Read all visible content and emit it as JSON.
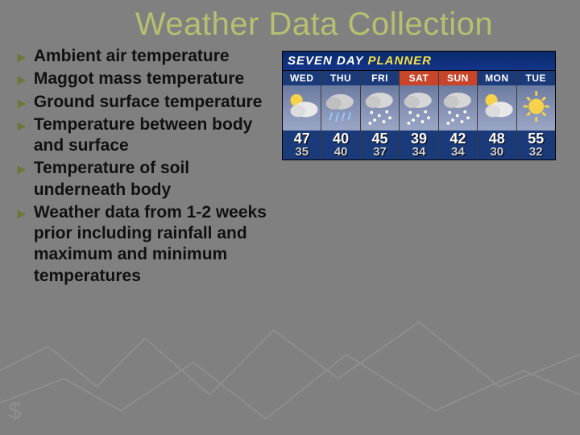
{
  "title": "Weather Data Collection",
  "title_color": "#b8bf6f",
  "background_color": "#808080",
  "bullet_arrow_color": "#6b7a3a",
  "bullet_text_color": "#111111",
  "bullet_fontsize_pt": 16,
  "bullets": [
    "Ambient air temperature",
    "Maggot mass temperature",
    "Ground surface temperature",
    "Temperature between body and surface",
    "Temperature of soil underneath body",
    "Weather data from 1-2 weeks prior including rainfall and maximum and minimum temperatures"
  ],
  "planner": {
    "header_prefix": "SEVEN DAY",
    "header_accent": "PLANNER",
    "header_bg": "#14348a",
    "header_text_color": "#ffffff",
    "header_accent_color": "#f5e24a",
    "weekday_bg": "#1a3a7a",
    "weekend_bg": "#c8452a",
    "icon_bg_top": "#6b7ba0",
    "icon_bg_bottom": "#9aa6c4",
    "temp_hi_color": "#ffffff",
    "temp_lo_color": "#d0d0d0",
    "days": [
      {
        "label": "WED",
        "icon": "partly-cloudy",
        "hi": 47,
        "lo": 35,
        "weekend": false
      },
      {
        "label": "THU",
        "icon": "rain",
        "hi": 40,
        "lo": 40,
        "weekend": false
      },
      {
        "label": "FRI",
        "icon": "snow",
        "hi": 45,
        "lo": 37,
        "weekend": false
      },
      {
        "label": "SAT",
        "icon": "snow",
        "hi": 39,
        "lo": 34,
        "weekend": true
      },
      {
        "label": "SUN",
        "icon": "snow",
        "hi": 42,
        "lo": 34,
        "weekend": true
      },
      {
        "label": "MON",
        "icon": "partly-sunny",
        "hi": 48,
        "lo": 30,
        "weekend": false
      },
      {
        "label": "TUE",
        "icon": "sunny",
        "hi": 55,
        "lo": 32,
        "weekend": false
      }
    ]
  }
}
